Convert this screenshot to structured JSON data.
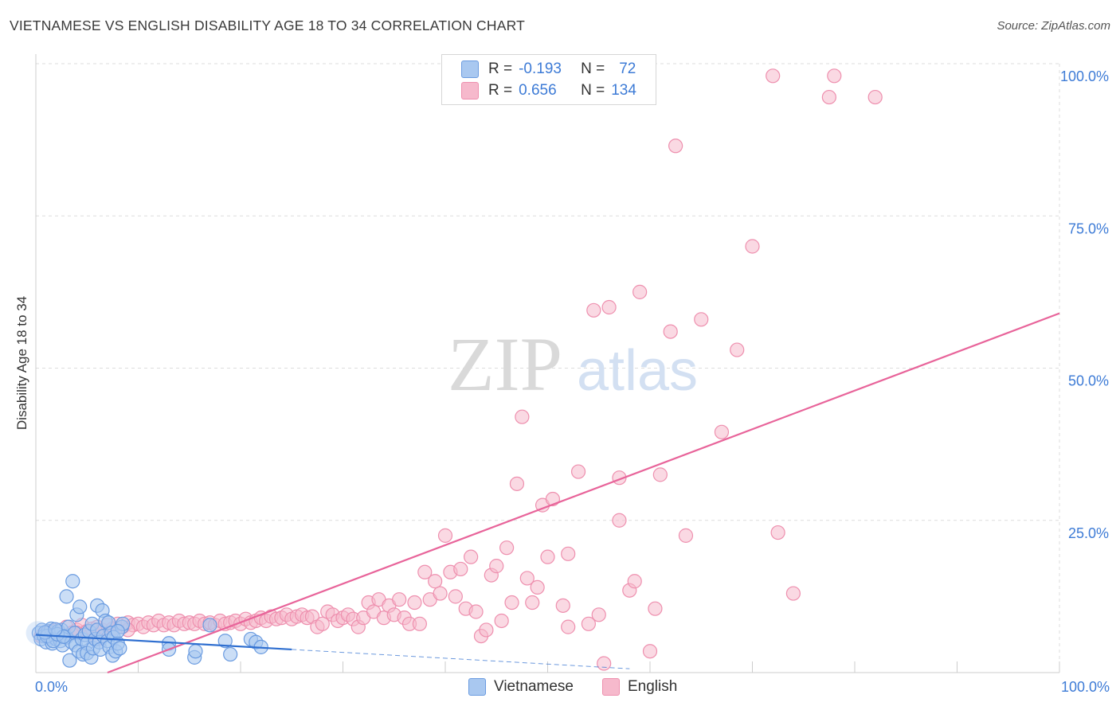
{
  "header": {
    "title": "VIETNAMESE VS ENGLISH DISABILITY AGE 18 TO 34 CORRELATION CHART",
    "source": "Source: ZipAtlas.com"
  },
  "legend": {
    "vietnamese": {
      "r_label": "R =",
      "r_value": "-0.193",
      "n_label": "N =",
      "n_value": "72"
    },
    "english": {
      "r_label": "R =",
      "r_value": "0.656",
      "n_label": "N =",
      "n_value": "134"
    }
  },
  "bottom_legend": {
    "vietnamese": "Vietnamese",
    "english": "English"
  },
  "colors": {
    "vietnamese_fill": "#a9c8f0",
    "vietnamese_stroke": "#6a9be0",
    "vietnamese_line": "#2f6fd0",
    "english_fill": "#f6b9cc",
    "english_stroke": "#ee8fae",
    "english_line": "#e8649a",
    "grid": "#dddddd",
    "tick_text": "#3d7bd6"
  },
  "watermark": {
    "zip": "ZIP",
    "atlas": "atlas"
  },
  "chart_data": {
    "type": "scatter",
    "title": "VIETNAMESE VS ENGLISH DISABILITY AGE 18 TO 34 CORRELATION CHART",
    "xlabel": "",
    "ylabel": "Disability Age 18 to 34",
    "xlim": [
      0,
      100
    ],
    "ylim": [
      0,
      100
    ],
    "x_tick_labels": {
      "left": "0.0%",
      "right": "100.0%"
    },
    "y_ticks": [
      {
        "value": 25,
        "label": "25.0%"
      },
      {
        "value": 50,
        "label": "50.0%"
      },
      {
        "value": 75,
        "label": "75.0%"
      },
      {
        "value": 100,
        "label": "100.0%"
      }
    ],
    "series": [
      {
        "name": "Vietnamese",
        "r": -0.193,
        "n": 72,
        "trend": {
          "x0": 0,
          "y0": 6.2,
          "x1": 25,
          "y1": 3.8,
          "dash_to_x": 58
        },
        "points": [
          [
            0.3,
            6.5
          ],
          [
            0.5,
            5.5
          ],
          [
            0.6,
            7.0
          ],
          [
            0.8,
            6.0
          ],
          [
            1.0,
            5.0
          ],
          [
            1.2,
            6.8
          ],
          [
            1.4,
            5.8
          ],
          [
            1.5,
            7.2
          ],
          [
            1.6,
            4.8
          ],
          [
            1.8,
            6.2
          ],
          [
            2.0,
            5.5
          ],
          [
            2.2,
            6.8
          ],
          [
            2.4,
            5.2
          ],
          [
            2.5,
            7.0
          ],
          [
            2.6,
            4.5
          ],
          [
            2.8,
            6.0
          ],
          [
            3.0,
            5.8
          ],
          [
            3.0,
            12.5
          ],
          [
            3.2,
            7.5
          ],
          [
            3.3,
            2.0
          ],
          [
            3.5,
            5.0
          ],
          [
            3.6,
            15.0
          ],
          [
            3.8,
            6.5
          ],
          [
            3.9,
            4.5
          ],
          [
            4.0,
            9.5
          ],
          [
            4.2,
            3.5
          ],
          [
            4.3,
            10.8
          ],
          [
            4.5,
            5.5
          ],
          [
            4.6,
            3.0
          ],
          [
            4.8,
            6.2
          ],
          [
            5.0,
            4.8
          ],
          [
            5.0,
            3.2
          ],
          [
            5.2,
            6.8
          ],
          [
            5.4,
            2.5
          ],
          [
            5.5,
            8.0
          ],
          [
            5.6,
            4.0
          ],
          [
            5.8,
            5.5
          ],
          [
            6.0,
            7.0
          ],
          [
            6.0,
            11.0
          ],
          [
            6.2,
            5.0
          ],
          [
            6.3,
            3.8
          ],
          [
            6.5,
            10.2
          ],
          [
            6.6,
            6.0
          ],
          [
            6.8,
            8.5
          ],
          [
            7.0,
            5.2
          ],
          [
            7.1,
            8.2
          ],
          [
            7.2,
            4.2
          ],
          [
            7.4,
            6.5
          ],
          [
            7.5,
            2.8
          ],
          [
            7.6,
            5.8
          ],
          [
            7.8,
            3.5
          ],
          [
            8.0,
            4.8
          ],
          [
            8.2,
            4.0
          ],
          [
            8.4,
            7.5
          ],
          [
            8.5,
            8.0
          ],
          [
            1.1,
            6.0
          ],
          [
            1.7,
            5.2
          ],
          [
            2.1,
            6.3
          ],
          [
            2.7,
            5.9
          ],
          [
            0.9,
            6.6
          ],
          [
            13.0,
            4.8
          ],
          [
            13.0,
            3.8
          ],
          [
            15.5,
            2.5
          ],
          [
            15.6,
            3.5
          ],
          [
            17.0,
            7.8
          ],
          [
            18.5,
            5.2
          ],
          [
            19.0,
            3.0
          ],
          [
            21.0,
            5.5
          ],
          [
            21.5,
            5.0
          ],
          [
            22.0,
            4.2
          ],
          [
            8.0,
            6.8
          ],
          [
            1.9,
            7.1
          ]
        ]
      },
      {
        "name": "English",
        "r": 0.656,
        "n": 134,
        "trend": {
          "x0": 7,
          "y0": 0,
          "x1": 100,
          "y1": 59
        },
        "points": [
          [
            0.5,
            6.0
          ],
          [
            1.0,
            6.5
          ],
          [
            1.5,
            6.8
          ],
          [
            2.0,
            7.0
          ],
          [
            2.5,
            6.2
          ],
          [
            3.0,
            7.5
          ],
          [
            3.5,
            6.5
          ],
          [
            4.0,
            7.0
          ],
          [
            4.5,
            7.8
          ],
          [
            5.0,
            6.8
          ],
          [
            5.5,
            7.2
          ],
          [
            6.0,
            7.5
          ],
          [
            6.5,
            7.0
          ],
          [
            7.0,
            7.8
          ],
          [
            7.5,
            7.2
          ],
          [
            8.0,
            8.0
          ],
          [
            8.5,
            7.5
          ],
          [
            9.0,
            8.2
          ],
          [
            9.5,
            7.8
          ],
          [
            10.0,
            8.0
          ],
          [
            10.5,
            7.5
          ],
          [
            11.0,
            8.2
          ],
          [
            11.5,
            7.8
          ],
          [
            12.0,
            8.5
          ],
          [
            12.5,
            7.8
          ],
          [
            13.0,
            8.2
          ],
          [
            13.5,
            7.8
          ],
          [
            14.0,
            8.5
          ],
          [
            14.5,
            8.0
          ],
          [
            15.0,
            8.2
          ],
          [
            15.5,
            8.0
          ],
          [
            16.0,
            8.5
          ],
          [
            16.5,
            8.0
          ],
          [
            17.0,
            8.2
          ],
          [
            17.5,
            7.8
          ],
          [
            18.0,
            8.5
          ],
          [
            18.5,
            8.0
          ],
          [
            19.0,
            8.2
          ],
          [
            19.5,
            8.5
          ],
          [
            20.0,
            8.0
          ],
          [
            20.5,
            8.8
          ],
          [
            21.0,
            8.2
          ],
          [
            21.5,
            8.5
          ],
          [
            22.0,
            9.0
          ],
          [
            22.5,
            8.5
          ],
          [
            23.0,
            9.2
          ],
          [
            23.5,
            8.8
          ],
          [
            24.0,
            9.0
          ],
          [
            24.5,
            9.5
          ],
          [
            25.0,
            8.8
          ],
          [
            25.5,
            9.2
          ],
          [
            26.0,
            9.5
          ],
          [
            26.5,
            9.0
          ],
          [
            27.0,
            9.2
          ],
          [
            27.5,
            7.5
          ],
          [
            28.0,
            8.0
          ],
          [
            28.5,
            10.0
          ],
          [
            29.0,
            9.5
          ],
          [
            29.5,
            8.5
          ],
          [
            30.0,
            9.0
          ],
          [
            30.5,
            9.5
          ],
          [
            31.0,
            8.8
          ],
          [
            31.5,
            7.5
          ],
          [
            32.0,
            9.0
          ],
          [
            32.5,
            11.5
          ],
          [
            33.0,
            10.0
          ],
          [
            33.5,
            12.0
          ],
          [
            34.0,
            9.0
          ],
          [
            34.5,
            11.0
          ],
          [
            35.0,
            9.5
          ],
          [
            35.5,
            12.0
          ],
          [
            36.0,
            9.0
          ],
          [
            36.5,
            8.0
          ],
          [
            37.0,
            11.5
          ],
          [
            37.5,
            8.0
          ],
          [
            38.0,
            16.5
          ],
          [
            38.5,
            12.0
          ],
          [
            39.0,
            15.0
          ],
          [
            39.5,
            13.0
          ],
          [
            40.0,
            22.5
          ],
          [
            40.5,
            16.5
          ],
          [
            41.0,
            12.5
          ],
          [
            41.5,
            17.0
          ],
          [
            42.0,
            10.5
          ],
          [
            42.5,
            19.0
          ],
          [
            43.0,
            10.0
          ],
          [
            43.5,
            6.0
          ],
          [
            44.0,
            7.0
          ],
          [
            44.5,
            16.0
          ],
          [
            45.0,
            17.5
          ],
          [
            45.5,
            8.5
          ],
          [
            46.0,
            20.5
          ],
          [
            46.5,
            11.5
          ],
          [
            47.0,
            31.0
          ],
          [
            47.5,
            42.0
          ],
          [
            48.0,
            15.5
          ],
          [
            48.5,
            11.5
          ],
          [
            49.0,
            14.0
          ],
          [
            49.5,
            27.5
          ],
          [
            50.0,
            19.0
          ],
          [
            50.5,
            28.5
          ],
          [
            51.5,
            11.0
          ],
          [
            52.0,
            19.5
          ],
          [
            53.0,
            33.0
          ],
          [
            54.0,
            8.0
          ],
          [
            54.5,
            59.5
          ],
          [
            55.0,
            9.5
          ],
          [
            55.5,
            1.5
          ],
          [
            56.0,
            60.0
          ],
          [
            57.0,
            25.0
          ],
          [
            57.0,
            32.0
          ],
          [
            58.0,
            13.5
          ],
          [
            58.5,
            15.0
          ],
          [
            59.0,
            62.5
          ],
          [
            60.0,
            3.5
          ],
          [
            60.5,
            10.5
          ],
          [
            61.0,
            32.5
          ],
          [
            62.0,
            56.0
          ],
          [
            62.5,
            86.5
          ],
          [
            63.5,
            22.5
          ],
          [
            65.0,
            58.0
          ],
          [
            67.0,
            39.5
          ],
          [
            68.5,
            53.0
          ],
          [
            70.0,
            70.0
          ],
          [
            72.0,
            98.0
          ],
          [
            72.5,
            23.0
          ],
          [
            74.0,
            13.0
          ],
          [
            77.5,
            94.5
          ],
          [
            78.0,
            98.0
          ],
          [
            82.0,
            94.5
          ],
          [
            6.0,
            5.5
          ],
          [
            9.0,
            7.0
          ],
          [
            4.0,
            6.5
          ],
          [
            52.0,
            7.5
          ]
        ]
      }
    ]
  }
}
